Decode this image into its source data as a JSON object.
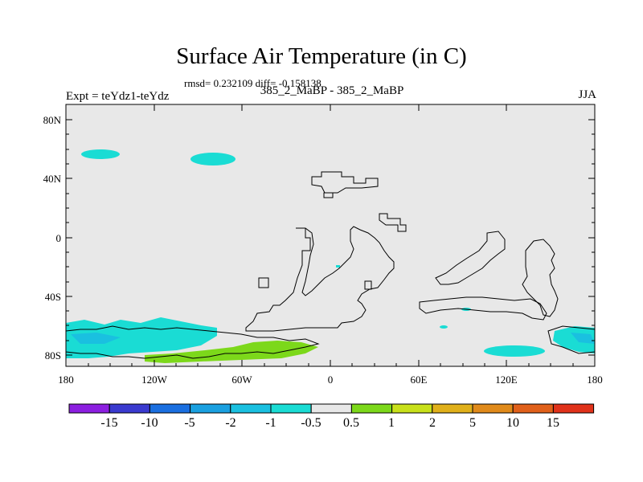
{
  "header": {
    "title": "Surface Air Temperature (in C)",
    "stats": "rmsd= 0.232109 diff= -0.158138",
    "left": "Expt = teYdz1-teYdz",
    "center": "385_2_MaBP - 385_2_MaBP",
    "right": "JJA"
  },
  "axes": {
    "lat_labels": [
      "80N",
      "40N",
      "0",
      "40S",
      "80S"
    ],
    "lon_labels": [
      "180",
      "120W",
      "60W",
      "0",
      "60E",
      "120E",
      "180"
    ]
  },
  "colorbar": {
    "labels": [
      "-15",
      "-10",
      "-5",
      "-2",
      "-1",
      "-0.5",
      "0.5",
      "1",
      "2",
      "5",
      "10",
      "15"
    ],
    "colors": [
      "#8c1fe0",
      "#3a3acf",
      "#1a6fe0",
      "#1aa0e0",
      "#1ac0e0",
      "#1adcd4",
      "#e8e8e8",
      "#7cd81a",
      "#c8e01a",
      "#e0b01a",
      "#e08a1a",
      "#e0601a",
      "#e0321a"
    ]
  },
  "map": {
    "background": "#e8e8e8",
    "anomaly_colors": {
      "cyan": "#1adcd4",
      "light_blue": "#1ac0e0",
      "green": "#7cd81a"
    }
  }
}
